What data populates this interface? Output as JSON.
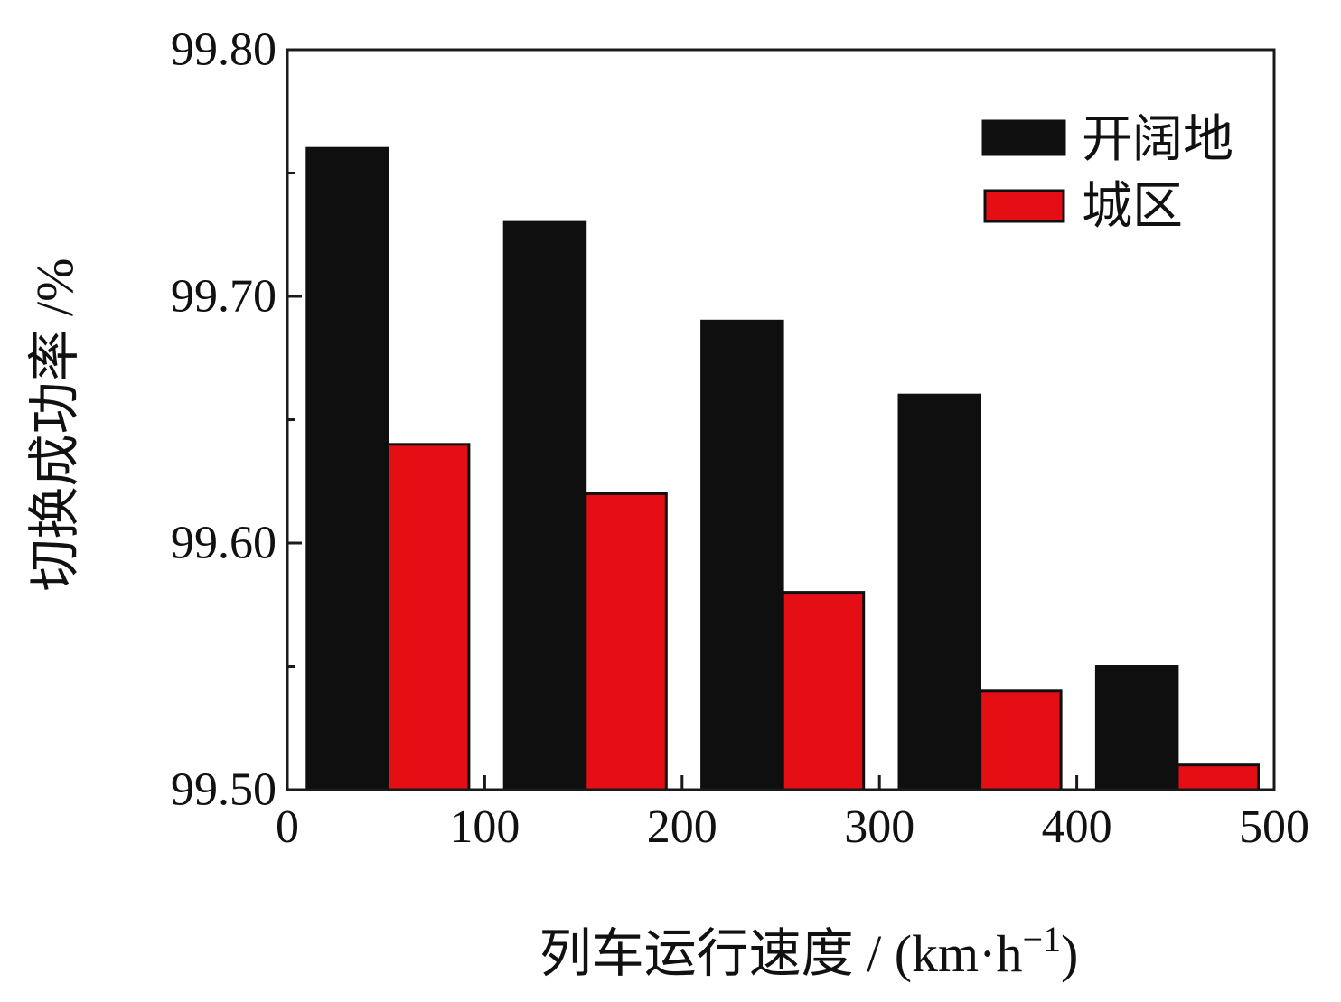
{
  "figure": {
    "background": "#ffffff",
    "axis_color": "#1a1a1a"
  },
  "chart_data": {
    "type": "bar",
    "title": "",
    "ylabel": "切换成功率 /%",
    "xlabel_parts": {
      "main": "列车运行速度 / (km·h",
      "sup": "−1",
      "close": ")"
    },
    "categories": [
      0,
      100,
      200,
      300,
      400
    ],
    "series": [
      {
        "name": "开阔地",
        "color": "#0f0f0f",
        "values": [
          99.76,
          99.73,
          99.69,
          99.66,
          99.55
        ]
      },
      {
        "name": "城区",
        "color": "#e60e15",
        "values": [
          99.64,
          99.62,
          99.58,
          99.54,
          99.51
        ]
      }
    ],
    "xlim": [
      0,
      500
    ],
    "ylim": [
      99.5,
      99.8
    ],
    "x_ticks": [
      0,
      100,
      200,
      300,
      400,
      500
    ],
    "y_major_ticks": [
      99.5,
      99.6,
      99.7,
      99.8
    ],
    "y_minor_ticks": [
      99.55,
      99.65,
      99.75
    ],
    "y_tick_decimals": 2,
    "grid": false,
    "legend_position": "top-right-inside",
    "bar_group": {
      "group_span": 100,
      "bar_width_units": 41,
      "first_bar_offset_units": 10
    }
  }
}
